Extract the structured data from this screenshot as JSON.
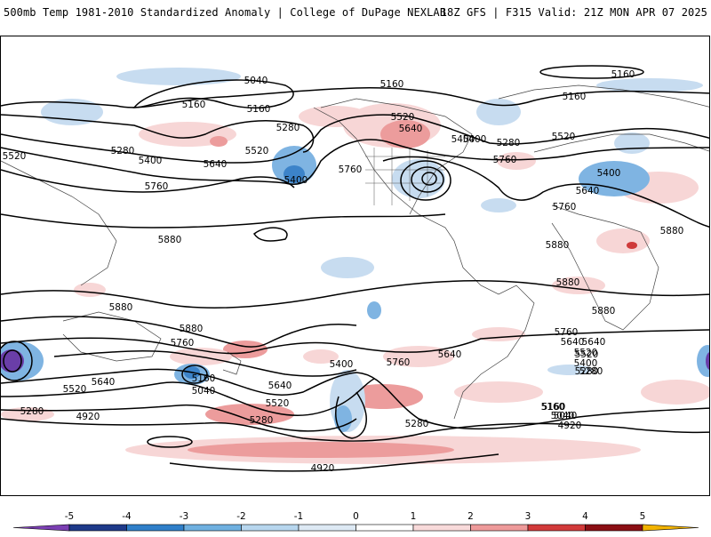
{
  "header": {
    "title_left": "500mb Temp 1981-2010 Standardized Anomaly | College of DuPage NEXLAB",
    "title_right": "18Z GFS | F315 Valid: 21Z MON APR 07 2025"
  },
  "map": {
    "contour_labels": [
      "5160",
      "5040",
      "5160",
      "5160",
      "5160",
      "5160",
      "5520",
      "5640",
      "5400",
      "5280",
      "5520",
      "5280",
      "5400",
      "5520",
      "5640",
      "5280",
      "5760",
      "5400",
      "5400",
      "5760",
      "5760",
      "5520",
      "5640",
      "5400",
      "5760",
      "5880",
      "5880",
      "5880",
      "5880",
      "5880",
      "5880",
      "5760",
      "5640",
      "5520",
      "5400",
      "5280",
      "5760",
      "5400",
      "5160",
      "5040",
      "5640",
      "5880",
      "5760",
      "5640",
      "5520",
      "5160",
      "5040",
      "5280",
      "4920",
      "5280",
      "5520",
      "5640",
      "5280",
      "5160",
      "5040",
      "4920",
      "4920",
      "5640",
      "5520",
      "5280"
    ]
  },
  "colorbar": {
    "ticks": [
      "-5",
      "-4",
      "-3",
      "-2",
      "-1",
      "0",
      "1",
      "2",
      "3",
      "4",
      "5"
    ],
    "colors": [
      "#7b3fb3",
      "#1e3a8a",
      "#2f7fc9",
      "#6fb0e0",
      "#b7d6ee",
      "#dde9f4",
      "#ffffff",
      "#f8dada",
      "#ee9a9a",
      "#d23a3a",
      "#8b0f14",
      "#f2b300"
    ]
  },
  "colors": {
    "cold_light": "#c7dcf0",
    "cold_mid": "#7fb4e2",
    "cold_strong": "#3c83c9",
    "cold_extreme": "#6a3ea8",
    "warm_light": "#f7d6d6",
    "warm_mid": "#ec9c9c",
    "warm_strong": "#cf3b3b",
    "contour": "#000000",
    "coast": "#444444"
  }
}
